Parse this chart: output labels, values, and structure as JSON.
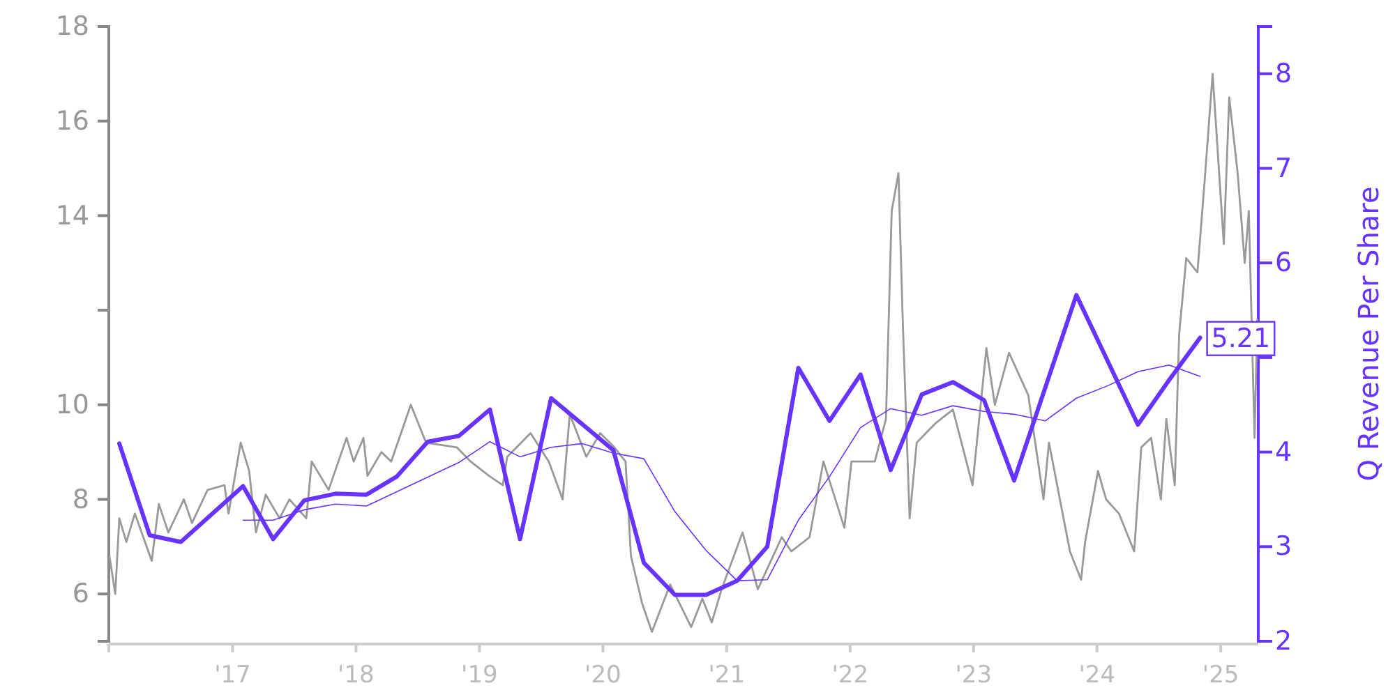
{
  "chart_data": {
    "type": "line",
    "y2label": "Q Revenue Per Share",
    "xlim": [
      "2016-01-01",
      "2025-04-22"
    ],
    "xticks": [
      {
        "value": "2016-01-01",
        "label": null
      },
      {
        "value": "2017-01-01",
        "label": "'17"
      },
      {
        "value": "2018-01-01",
        "label": "'18"
      },
      {
        "value": "2019-01-01",
        "label": "'19"
      },
      {
        "value": "2020-01-01",
        "label": "'20"
      },
      {
        "value": "2021-01-01",
        "label": "'21"
      },
      {
        "value": "2022-01-01",
        "label": "'22"
      },
      {
        "value": "2023-01-01",
        "label": "'23"
      },
      {
        "value": "2024-01-01",
        "label": "'24"
      },
      {
        "value": "2025-01-01",
        "label": "'25"
      }
    ],
    "ylim": [
      5,
      18
    ],
    "yticks": [
      6,
      8,
      10,
      {
        "value": 12,
        "label": null
      },
      14,
      16,
      18
    ],
    "y2lim": [
      2,
      8.5
    ],
    "y2ticks": [
      2,
      3,
      4,
      {
        "value": 5,
        "label": null
      },
      6,
      7,
      8
    ],
    "series": [
      {
        "color": "#999999",
        "x": [
          "2016-01-03",
          "2016-01-20",
          "2016-02-01",
          "2016-02-22",
          "2016-03-18",
          "2016-05-07",
          "2016-05-28",
          "2016-06-25",
          "2016-08-10",
          "2016-09-03",
          "2016-10-19",
          "2016-12-08",
          "2016-12-20",
          "2017-01-25",
          "2017-02-19",
          "2017-03-11",
          "2017-04-09",
          "2017-05-20",
          "2017-06-18",
          "2017-08-07",
          "2017-08-23",
          "2017-10-12",
          "2017-12-04",
          "2017-12-25",
          "2018-01-23",
          "2018-02-04",
          "2018-03-17",
          "2018-04-15",
          "2018-06-12",
          "2018-07-27",
          "2018-10-26",
          "2018-12-06",
          "2019-01-29",
          "2019-03-11",
          "2019-03-24",
          "2019-06-01",
          "2019-07-25",
          "2019-09-04",
          "2019-09-25",
          "2019-11-13",
          "2019-12-24",
          "2020-02-04",
          "2020-03-08",
          "2020-03-24",
          "2020-04-26",
          "2020-05-25",
          "2020-07-18",
          "2020-09-18",
          "2020-10-21",
          "2020-11-18",
          "2020-12-17",
          "2021-02-17",
          "2021-04-03",
          "2021-06-13",
          "2021-07-11",
          "2021-09-03",
          "2021-10-14",
          "2021-12-15",
          "2022-01-05",
          "2022-03-15",
          "2022-04-17",
          "2022-05-04",
          "2022-05-24",
          "2022-06-06",
          "2022-06-26",
          "2022-07-17",
          "2022-09-09",
          "2022-11-01",
          "2022-12-29",
          "2023-02-08",
          "2023-03-05",
          "2023-04-16",
          "2023-06-12",
          "2023-07-27",
          "2023-08-12",
          "2023-10-13",
          "2023-11-15",
          "2023-11-27",
          "2024-01-04",
          "2024-01-28",
          "2024-03-06",
          "2024-04-20",
          "2024-05-11",
          "2024-06-09",
          "2024-07-08",
          "2024-07-24",
          "2024-08-18",
          "2024-08-31",
          "2024-09-21",
          "2024-10-24",
          "2024-11-14",
          "2024-12-08",
          "2025-01-10",
          "2025-01-26",
          "2025-02-20",
          "2025-03-13",
          "2025-03-25",
          "2025-04-11",
          "2025-04-19"
        ],
        "values": [
          6.8,
          6.0,
          7.6,
          7.1,
          7.7,
          6.7,
          7.9,
          7.3,
          8.0,
          7.5,
          8.2,
          8.3,
          7.7,
          9.2,
          8.6,
          7.3,
          8.1,
          7.6,
          8.0,
          7.6,
          8.8,
          8.2,
          9.3,
          8.8,
          9.3,
          8.5,
          9.0,
          8.8,
          10.0,
          9.2,
          9.1,
          8.8,
          8.5,
          8.3,
          8.9,
          9.4,
          8.8,
          8.0,
          9.8,
          8.9,
          9.4,
          9.1,
          8.8,
          6.8,
          5.8,
          5.2,
          6.2,
          5.3,
          5.9,
          5.4,
          6.1,
          7.3,
          6.1,
          7.2,
          6.9,
          7.2,
          8.8,
          7.4,
          8.8,
          8.8,
          9.7,
          14.1,
          14.9,
          11.7,
          7.6,
          9.2,
          9.6,
          9.9,
          8.3,
          11.2,
          10.0,
          11.1,
          10.2,
          8.0,
          9.2,
          6.9,
          6.3,
          7.1,
          8.6,
          8.0,
          7.7,
          6.9,
          9.1,
          9.3,
          8.0,
          9.7,
          8.3,
          11.5,
          13.1,
          12.8,
          14.7,
          17.0,
          13.4,
          16.5,
          14.9,
          13.0,
          14.1,
          9.3,
          11.8
        ]
      },
      {
        "color": "#6633ff",
        "axis": "y2",
        "x": [
          "2016-02-01",
          "2016-05-01",
          "2016-08-01",
          "2017-02-01",
          "2017-05-01",
          "2017-08-01",
          "2017-11-01",
          "2018-02-01",
          "2018-05-01",
          "2018-08-01",
          "2018-11-01",
          "2019-02-01",
          "2019-05-01",
          "2019-08-01",
          "2020-02-01",
          "2020-05-01",
          "2020-08-01",
          "2020-11-01",
          "2021-02-01",
          "2021-05-01",
          "2021-08-01",
          "2021-11-01",
          "2022-02-01",
          "2022-05-01",
          "2022-08-01",
          "2022-11-01",
          "2023-02-01",
          "2023-05-01",
          "2023-11-01",
          "2024-05-01",
          "2024-08-01",
          "2024-11-01"
        ],
        "values": [
          4.09,
          3.12,
          3.05,
          3.64,
          3.08,
          3.49,
          3.56,
          3.55,
          3.74,
          4.11,
          4.17,
          4.45,
          3.08,
          4.57,
          4.02,
          2.83,
          2.49,
          2.49,
          2.64,
          3.0,
          4.89,
          4.33,
          4.82,
          3.81,
          4.61,
          4.74,
          4.55,
          3.7,
          5.66,
          4.29,
          4.76,
          5.21
        ],
        "value_labels": [
          null,
          null,
          null,
          null,
          null,
          null,
          null,
          null,
          null,
          null,
          null,
          null,
          null,
          null,
          null,
          null,
          null,
          null,
          null,
          null,
          null,
          null,
          null,
          null,
          null,
          null,
          null,
          null,
          null,
          null,
          null,
          "5.21"
        ]
      },
      {
        "color": "#6633ff",
        "axis": "y2",
        "x": [
          "2017-02-01",
          "2017-05-01",
          "2017-08-01",
          "2017-11-01",
          "2018-02-01",
          "2018-11-01",
          "2019-02-01",
          "2019-05-01",
          "2019-08-01",
          "2019-11-01",
          "2020-02-01",
          "2020-05-01",
          "2020-08-01",
          "2020-11-01",
          "2021-02-01",
          "2021-05-01",
          "2021-08-01",
          "2021-11-01",
          "2022-02-01",
          "2022-05-01",
          "2022-08-01",
          "2022-11-01",
          "2023-02-01",
          "2023-05-01",
          "2023-08-01",
          "2023-11-01",
          "2024-02-01",
          "2024-05-01",
          "2024-08-01",
          "2024-11-01"
        ],
        "values": [
          3.28,
          3.28,
          3.39,
          3.45,
          3.43,
          3.89,
          4.11,
          3.95,
          4.05,
          4.09,
          3.99,
          3.93,
          3.37,
          2.96,
          2.64,
          2.65,
          3.28,
          3.74,
          4.26,
          4.46,
          4.39,
          4.49,
          4.43,
          4.4,
          4.33,
          4.57,
          4.7,
          4.85,
          4.92,
          4.8
        ]
      }
    ]
  }
}
